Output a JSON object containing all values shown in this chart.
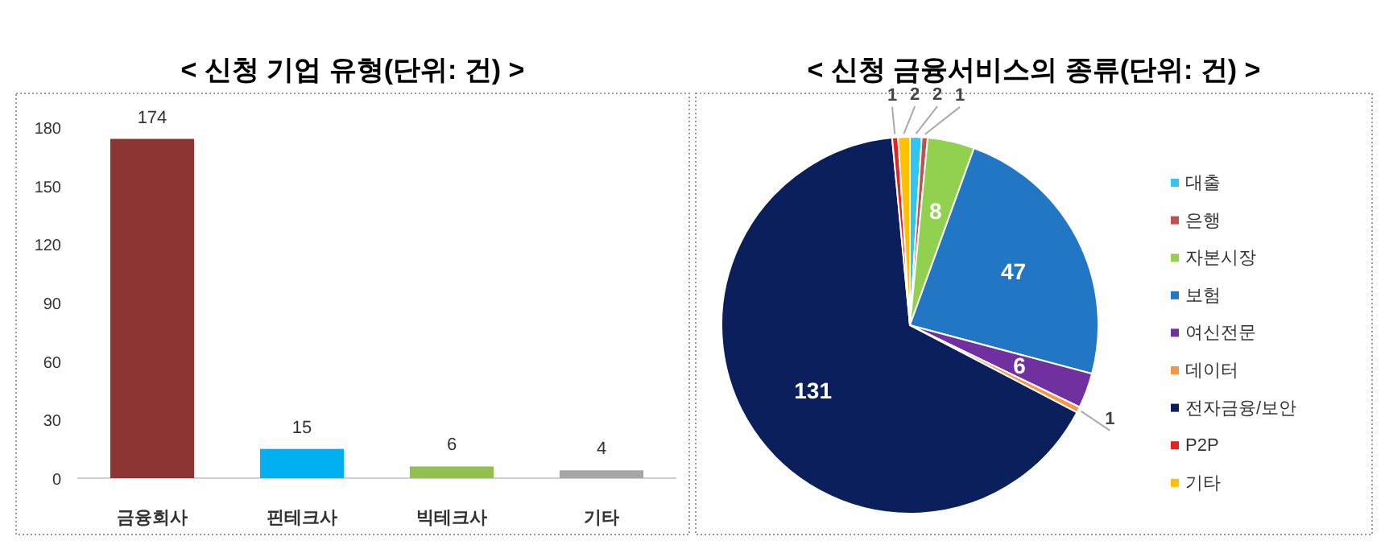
{
  "chart_data": [
    {
      "type": "bar",
      "title": "< 신청 기업 유형(단위: 건) >",
      "categories": [
        "금융회사",
        "핀테크사",
        "빅테크사",
        "기타"
      ],
      "values": [
        174,
        15,
        6,
        4
      ],
      "colors": [
        "#8b3431",
        "#00b0f0",
        "#92c050",
        "#a6a6a6"
      ],
      "ylim": [
        0,
        180
      ],
      "yticks": [
        0,
        30,
        60,
        90,
        120,
        150,
        180
      ],
      "data_labels": true
    },
    {
      "type": "pie",
      "title": "< 신청 금융서비스의 종류(단위: 건) >",
      "categories": [
        "대출",
        "은행",
        "자본시장",
        "보험",
        "여신전문",
        "데이터",
        "전자금융/보안",
        "P2P",
        "기타"
      ],
      "values": [
        2,
        1,
        8,
        47,
        6,
        1,
        131,
        1,
        2
      ],
      "colors": [
        "#33c5ef",
        "#c0504d",
        "#92d050",
        "#2277c4",
        "#7030a0",
        "#f79646",
        "#0b1f5c",
        "#e8211e",
        "#ffc000"
      ],
      "data_labels": true,
      "legend": "right"
    }
  ]
}
